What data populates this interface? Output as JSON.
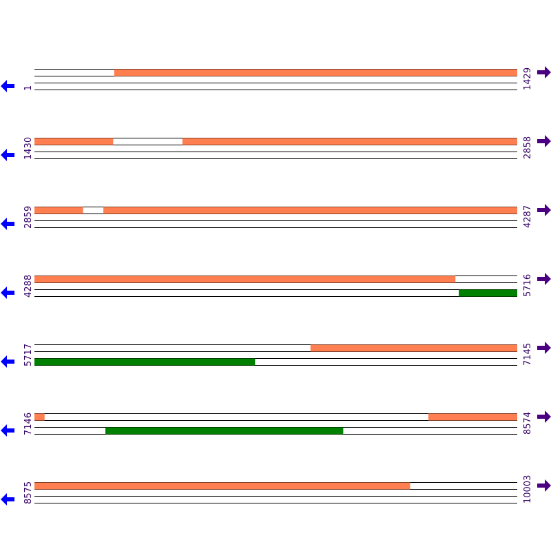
{
  "rows": [
    {
      "start": 1,
      "end": 1429,
      "forward": [
        {
          "start": 237,
          "end": 1429
        }
      ],
      "reverse": []
    },
    {
      "start": 1430,
      "end": 2858,
      "forward": [
        {
          "start": 1430,
          "end": 1662
        },
        {
          "start": 1868,
          "end": 2858
        }
      ],
      "reverse": []
    },
    {
      "start": 2859,
      "end": 4287,
      "forward": [
        {
          "start": 2859,
          "end": 3002
        },
        {
          "start": 3063,
          "end": 4287
        }
      ],
      "reverse": []
    },
    {
      "start": 4288,
      "end": 5716,
      "forward": [
        {
          "start": 4288,
          "end": 5533
        }
      ],
      "reverse": [
        {
          "start": 5544,
          "end": 5716
        }
      ]
    },
    {
      "start": 5717,
      "end": 7145,
      "forward": [
        {
          "start": 6534,
          "end": 7145
        }
      ],
      "reverse": [
        {
          "start": 5717,
          "end": 6369
        }
      ]
    },
    {
      "start": 7146,
      "end": 8574,
      "forward": [
        {
          "start": 7146,
          "end": 7175
        },
        {
          "start": 8312,
          "end": 8574
        }
      ],
      "reverse": [
        {
          "start": 7356,
          "end": 8059
        }
      ]
    },
    {
      "start": 8575,
      "end": 10003,
      "forward": [
        {
          "start": 8575,
          "end": 9686
        }
      ],
      "reverse": []
    }
  ]
}
